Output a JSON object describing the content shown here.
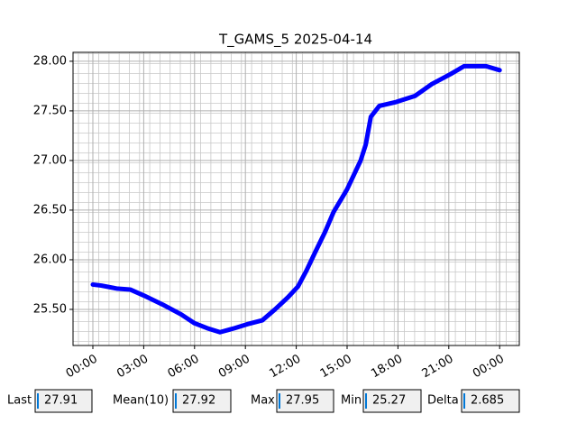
{
  "chart_data": {
    "type": "line",
    "title": "T_GAMS_5 2025-04-14",
    "x": [
      0,
      0.5,
      1.4,
      2.2,
      3,
      4.1,
      5.2,
      6,
      6.75,
      7.5,
      8.35,
      9.1,
      10,
      10.75,
      11.5,
      12.1,
      12.6,
      13.1,
      13.7,
      14.2,
      15,
      15.8,
      16.1,
      16.4,
      16.9,
      17.9,
      19,
      20,
      21.1,
      21.9,
      22.4,
      23.2,
      24
    ],
    "series": [
      {
        "name": "T_GAMS_5",
        "color": "#0000ff",
        "values": [
          25.75,
          25.74,
          25.71,
          25.7,
          25.64,
          25.55,
          25.45,
          25.36,
          25.31,
          25.27,
          25.31,
          25.35,
          25.39,
          25.5,
          25.62,
          25.73,
          25.89,
          26.07,
          26.28,
          26.48,
          26.71,
          27.0,
          27.16,
          27.44,
          27.55,
          27.59,
          27.65,
          27.77,
          27.87,
          27.95,
          27.95,
          27.95,
          27.91
        ]
      }
    ],
    "xlim": [
      -1.17,
      25.16
    ],
    "xticks": [
      {
        "value": 0,
        "label": "00:00"
      },
      {
        "value": 3,
        "label": "03:00"
      },
      {
        "value": 6,
        "label": "06:00"
      },
      {
        "value": 9,
        "label": "09:00"
      },
      {
        "value": 12,
        "label": "12:00"
      },
      {
        "value": 15,
        "label": "15:00"
      },
      {
        "value": 18,
        "label": "18:00"
      },
      {
        "value": 21,
        "label": "21:00"
      },
      {
        "value": 24,
        "label": "00:00"
      }
    ],
    "ylim": [
      25.136,
      28.09
    ],
    "yticks": [
      {
        "value": 25.5,
        "label": "25.50"
      },
      {
        "value": 26,
        "label": "26.00"
      },
      {
        "value": 26.5,
        "label": "26.50"
      },
      {
        "value": 27,
        "label": "27.00"
      },
      {
        "value": 27.5,
        "label": "27.50"
      },
      {
        "value": 28,
        "label": "28.00"
      }
    ],
    "grid": true
  },
  "stats": [
    {
      "label": "Last",
      "value": "27.91"
    },
    {
      "label": "Mean(10)",
      "value": "27.92"
    },
    {
      "label": "Max",
      "value": "27.95"
    },
    {
      "label": "Min",
      "value": "25.27"
    },
    {
      "label": "Delta",
      "value": "2.685"
    }
  ]
}
